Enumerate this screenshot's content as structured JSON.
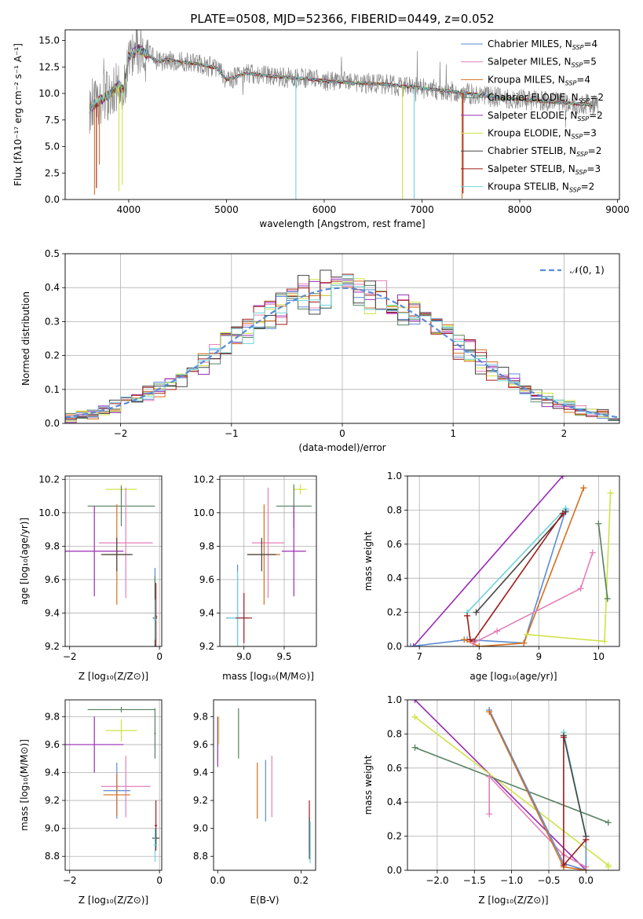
{
  "colors": {
    "chabrier_miles": "#5b8bd6",
    "salpeter_miles": "#e37fb8",
    "kroupa_miles": "#d66f1c",
    "chabrier_elodie": "#558060",
    "salpeter_elodie": "#9a2bb5",
    "kroupa_elodie": "#cfe246",
    "chabrier_stelib": "#444444",
    "salpeter_stelib": "#a11a1a",
    "kroupa_stelib": "#6fd4dc",
    "gray": "#888888",
    "normal": "#5b8bd6"
  },
  "chart_data": [
    {
      "id": "spectrum",
      "type": "line",
      "title": "PLATE=0508, MJD=52366, FIBERID=0449, z=0.052",
      "xlabel": "wavelength [Angstrom, rest frame]",
      "ylabel": "Flux [fλ10⁻¹⁷ erg cm⁻² s⁻¹ A⁻¹]",
      "xlim": [
        3350,
        9020
      ],
      "ylim": [
        0,
        16
      ],
      "xticks": [
        "4000",
        "5000",
        "6000",
        "7000",
        "8000",
        "9000"
      ],
      "xtick_values": [
        4000,
        5000,
        6000,
        7000,
        8000,
        9000
      ],
      "yticks": [
        "0.0",
        "2.5",
        "5.0",
        "7.5",
        "10.0",
        "12.5",
        "15.0"
      ],
      "ytick_values": [
        0,
        2.5,
        5,
        7.5,
        10,
        12.5,
        15
      ],
      "legend_position": "top-right",
      "legend": [
        {
          "label": "Chabrier MILES, N",
          "sub": "SSP",
          "suffix": "=4",
          "color_key": "chabrier_miles"
        },
        {
          "label": "Salpeter MILES, N",
          "sub": "SSP",
          "suffix": "=5",
          "color_key": "salpeter_miles"
        },
        {
          "label": "Kroupa MILES, N",
          "sub": "SSP",
          "suffix": "=4",
          "color_key": "kroupa_miles"
        },
        {
          "label": "Chabrier ELODIE, N",
          "sub": "SSP",
          "suffix": "=2",
          "color_key": "chabrier_elodie"
        },
        {
          "label": "Salpeter ELODIE, N",
          "sub": "SSP",
          "suffix": "=2",
          "color_key": "salpeter_elodie"
        },
        {
          "label": "Kroupa ELODIE, N",
          "sub": "SSP",
          "suffix": "=3",
          "color_key": "kroupa_elodie"
        },
        {
          "label": "Chabrier STELIB, N",
          "sub": "SSP",
          "suffix": "=2",
          "color_key": "chabrier_stelib"
        },
        {
          "label": "Salpeter STELIB, N",
          "sub": "SSP",
          "suffix": "=3",
          "color_key": "salpeter_stelib"
        },
        {
          "label": "Kroupa STELIB, N",
          "sub": "SSP",
          "suffix": "=2",
          "color_key": "kroupa_stelib"
        }
      ],
      "continuum": {
        "x": [
          3600,
          3700,
          3800,
          3900,
          3950,
          4000,
          4100,
          4200,
          4300,
          4400,
          4500,
          4700,
          4900,
          5000,
          5200,
          5500,
          5800,
          6000,
          6300,
          6600,
          7000,
          7400,
          7800,
          8200,
          8600,
          8800
        ],
        "y": [
          8.6,
          9.3,
          9.9,
          10.8,
          10.2,
          13.5,
          14.2,
          13.6,
          13.0,
          13.2,
          13.0,
          12.8,
          12.4,
          11.3,
          11.9,
          11.6,
          11.4,
          11.2,
          11.0,
          10.9,
          10.5,
          10.1,
          9.6,
          9.3,
          9.0,
          8.9
        ]
      },
      "spikes": [
        {
          "x": 3650,
          "depth": 8.5,
          "color_key": "kroupa_miles"
        },
        {
          "x": 3670,
          "depth": 8.0,
          "color_key": "salpeter_stelib"
        },
        {
          "x": 3700,
          "depth": 6.0,
          "color_key": "kroupa_miles"
        },
        {
          "x": 3900,
          "depth": 10.0,
          "color_key": "kroupa_elodie"
        },
        {
          "x": 3935,
          "depth": 9.0,
          "color_key": "kroupa_elodie"
        },
        {
          "x": 5710,
          "depth": 11.5,
          "color_key": "kroupa_stelib"
        },
        {
          "x": 6800,
          "depth": 10.8,
          "color_key": "kroupa_elodie"
        },
        {
          "x": 6920,
          "depth": 10.5,
          "color_key": "kroupa_stelib"
        },
        {
          "x": 7410,
          "depth": 10.0,
          "color_key": "kroupa_miles"
        },
        {
          "x": 7420,
          "depth": 9.5,
          "color_key": "salpeter_stelib"
        }
      ]
    },
    {
      "id": "residuals",
      "type": "line",
      "xlabel": "(data-model)/error",
      "ylabel": "Normed distribution",
      "xlim": [
        -2.5,
        2.5
      ],
      "ylim": [
        0,
        0.5
      ],
      "xticks": [
        "−2",
        "−1",
        "0",
        "1",
        "2"
      ],
      "xtick_values": [
        -2,
        -1,
        0,
        1,
        2
      ],
      "yticks": [
        "0.0",
        "0.1",
        "0.2",
        "0.3",
        "0.4",
        "0.5"
      ],
      "ytick_values": [
        0,
        0.1,
        0.2,
        0.3,
        0.4,
        0.5
      ],
      "grid": true,
      "legend_position": "top-right",
      "normal_legend": "𝒩(0, 1)",
      "bin_start": -2.5,
      "bin_width": 0.1
    },
    {
      "id": "z-age",
      "type": "scatter",
      "xlabel": "Z [log₁₀(Z/Z⊙)]",
      "ylabel": "age  [log₁₀(age/yr)]",
      "xlim": [
        -2.1,
        0.05
      ],
      "ylim": [
        9.2,
        10.22
      ],
      "xticks": [
        "−2",
        "0"
      ],
      "xtick_values": [
        -2,
        0
      ],
      "yticks": [
        "9.2",
        "9.4",
        "9.6",
        "9.8",
        "10.0",
        "10.2"
      ],
      "ytick_values": [
        9.2,
        9.4,
        9.6,
        9.8,
        10.0,
        10.2
      ],
      "grid": true,
      "points": [
        {
          "x": -0.85,
          "y": 10.14,
          "xerr": 0.35,
          "yerr": 0.03,
          "color_key": "kroupa_elodie"
        },
        {
          "x": -0.85,
          "y": 10.04,
          "xerr": 0.75,
          "yerr": 0.12,
          "color_key": "chabrier_elodie"
        },
        {
          "x": -1.45,
          "y": 9.77,
          "xerr": 0.65,
          "yerr": 0.27,
          "color_key": "salpeter_elodie"
        },
        {
          "x": -0.75,
          "y": 9.82,
          "xerr": 0.6,
          "yerr": 0.33,
          "color_key": "salpeter_miles"
        },
        {
          "x": -0.95,
          "y": 9.75,
          "xerr": 0.3,
          "yerr": 0.3,
          "color_key": "kroupa_miles"
        },
        {
          "x": -0.95,
          "y": 9.75,
          "xerr": 0.35,
          "yerr": 0.1,
          "color_key": "chabrier_stelib"
        },
        {
          "x": -0.1,
          "y": 9.37,
          "xerr": 0.05,
          "yerr": 0.3,
          "color_key": "chabrier_miles"
        },
        {
          "x": -0.1,
          "y": 9.37,
          "xerr": 0.05,
          "yerr": 0.25,
          "color_key": "chabrier_elodie"
        },
        {
          "x": -0.08,
          "y": 9.38,
          "xerr": 0.03,
          "yerr": 0.2,
          "color_key": "salpeter_stelib"
        },
        {
          "x": -0.1,
          "y": 9.36,
          "xerr": 0.03,
          "yerr": 0.12,
          "color_key": "kroupa_stelib"
        }
      ]
    },
    {
      "id": "mass-age",
      "type": "scatter",
      "xlabel": "mass [log₁₀(M/M⊙)]",
      "ylabel": "",
      "xlim": [
        8.7,
        9.9
      ],
      "ylim": [
        9.2,
        10.22
      ],
      "xticks": [
        "9.0",
        "9.5"
      ],
      "xtick_values": [
        9.0,
        9.5
      ],
      "yticks": [
        "9.2",
        "9.4",
        "9.6",
        "9.8",
        "10.0",
        "10.2"
      ],
      "ytick_values": [
        9.2,
        9.4,
        9.6,
        9.8,
        10.0,
        10.2
      ],
      "grid": true,
      "points": [
        {
          "x": 9.7,
          "y": 10.14,
          "xerr": 0.08,
          "yerr": 0.03,
          "color_key": "kroupa_elodie"
        },
        {
          "x": 9.62,
          "y": 10.04,
          "xerr": 0.22,
          "yerr": 0.13,
          "color_key": "chabrier_elodie"
        },
        {
          "x": 9.62,
          "y": 9.77,
          "xerr": 0.15,
          "yerr": 0.27,
          "color_key": "salpeter_elodie"
        },
        {
          "x": 9.3,
          "y": 9.82,
          "xerr": 0.2,
          "yerr": 0.33,
          "color_key": "salpeter_miles"
        },
        {
          "x": 9.25,
          "y": 9.75,
          "xerr": 0.2,
          "yerr": 0.3,
          "color_key": "kroupa_miles"
        },
        {
          "x": 9.22,
          "y": 9.75,
          "xerr": 0.18,
          "yerr": 0.1,
          "color_key": "chabrier_stelib"
        },
        {
          "x": 8.92,
          "y": 9.37,
          "xerr": 0.14,
          "yerr": 0.32,
          "color_key": "chabrier_miles"
        },
        {
          "x": 8.92,
          "y": 9.37,
          "xerr": 0.12,
          "yerr": 0.28,
          "color_key": "kroupa_stelib"
        },
        {
          "x": 9.0,
          "y": 9.37,
          "xerr": 0.1,
          "yerr": 0.15,
          "color_key": "salpeter_stelib"
        }
      ]
    },
    {
      "id": "age-weight",
      "type": "line",
      "xlabel": "age  [log₁₀(age/yr)]",
      "ylabel": "mass weight",
      "xlim": [
        6.8,
        10.35
      ],
      "ylim": [
        0,
        1
      ],
      "xticks": [
        "7",
        "8",
        "9",
        "10"
      ],
      "xtick_values": [
        7,
        8,
        9,
        10
      ],
      "yticks": [
        "0.0",
        "0.2",
        "0.4",
        "0.6",
        "0.8",
        "1.0"
      ],
      "ytick_values": [
        0,
        0.2,
        0.4,
        0.6,
        0.8,
        1.0
      ],
      "grid": true,
      "series": [
        {
          "color_key": "salpeter_elodie",
          "x": [
            6.9,
            9.4
          ],
          "y": [
            0.0,
            1.0
          ]
        },
        {
          "color_key": "chabrier_miles",
          "x": [
            6.85,
            7.8,
            8.75,
            9.45
          ],
          "y": [
            0.0,
            0.04,
            0.02,
            0.8
          ]
        },
        {
          "color_key": "kroupa_stelib",
          "x": [
            7.8,
            9.45
          ],
          "y": [
            0.2,
            0.81
          ]
        },
        {
          "color_key": "chabrier_stelib",
          "x": [
            7.95,
            9.45
          ],
          "y": [
            0.2,
            0.79
          ]
        },
        {
          "color_key": "salpeter_stelib",
          "x": [
            7.8,
            7.85,
            7.9,
            9.4
          ],
          "y": [
            0.18,
            0.04,
            0.03,
            0.78
          ]
        },
        {
          "color_key": "kroupa_miles",
          "x": [
            7.75,
            8.0,
            8.75,
            9.75
          ],
          "y": [
            0.04,
            0.0,
            0.02,
            0.93
          ]
        },
        {
          "color_key": "salpeter_miles",
          "x": [
            7.9,
            8.3,
            9.7,
            9.9
          ],
          "y": [
            0.02,
            0.09,
            0.34,
            0.55
          ]
        },
        {
          "color_key": "kroupa_elodie",
          "x": [
            8.8,
            10.1,
            10.2
          ],
          "y": [
            0.07,
            0.03,
            0.9
          ]
        },
        {
          "color_key": "chabrier_elodie",
          "x": [
            10.0,
            10.15
          ],
          "y": [
            0.72,
            0.28
          ]
        }
      ]
    },
    {
      "id": "z-mass",
      "type": "scatter",
      "xlabel": "Z [log₁₀(Z/Z⊙)]",
      "ylabel": "mass [log₁₀(M/M⊙)]",
      "xlim": [
        -2.1,
        0.05
      ],
      "ylim": [
        8.7,
        9.92
      ],
      "xticks": [
        "−2",
        "0"
      ],
      "xtick_values": [
        -2,
        0
      ],
      "yticks": [
        "8.8",
        "9.0",
        "9.2",
        "9.4",
        "9.6",
        "9.8"
      ],
      "ytick_values": [
        8.8,
        9.0,
        9.2,
        9.4,
        9.6,
        9.8
      ],
      "grid": true,
      "points": [
        {
          "x": -0.85,
          "y": 9.85,
          "xerr": 0.75,
          "yerr": 0.02,
          "color_key": "chabrier_elodie"
        },
        {
          "x": -0.1,
          "y": 9.68,
          "xerr": 0.02,
          "yerr": 0.18,
          "color_key": "chabrier_elodie"
        },
        {
          "x": -0.85,
          "y": 9.7,
          "xerr": 0.35,
          "yerr": 0.08,
          "color_key": "kroupa_elodie"
        },
        {
          "x": -1.45,
          "y": 9.6,
          "xerr": 0.65,
          "yerr": 0.2,
          "color_key": "salpeter_elodie"
        },
        {
          "x": -0.75,
          "y": 9.3,
          "xerr": 0.55,
          "yerr": 0.22,
          "color_key": "salpeter_miles"
        },
        {
          "x": -0.95,
          "y": 9.27,
          "xerr": 0.3,
          "yerr": 0.2,
          "color_key": "chabrier_miles"
        },
        {
          "x": -0.95,
          "y": 9.24,
          "xerr": 0.3,
          "yerr": 0.15,
          "color_key": "kroupa_miles"
        },
        {
          "x": -0.08,
          "y": 9.02,
          "xerr": 0.03,
          "yerr": 0.18,
          "color_key": "salpeter_stelib"
        },
        {
          "x": -0.08,
          "y": 8.93,
          "xerr": 0.08,
          "yerr": 0.06,
          "color_key": "chabrier_stelib"
        },
        {
          "x": -0.1,
          "y": 8.88,
          "xerr": 0.03,
          "yerr": 0.12,
          "color_key": "kroupa_stelib"
        }
      ]
    },
    {
      "id": "ebv-mass",
      "type": "scatter",
      "xlabel": "E(B-V)",
      "ylabel": "",
      "xlim": [
        -0.01,
        0.235
      ],
      "ylim": [
        8.7,
        9.92
      ],
      "xticks": [
        "0.0",
        "0.2"
      ],
      "xtick_values": [
        0.0,
        0.2
      ],
      "yticks": [
        "8.8",
        "9.0",
        "9.2",
        "9.4",
        "9.6",
        "9.8"
      ],
      "ytick_values": [
        8.8,
        9.0,
        9.2,
        9.4,
        9.6,
        9.8
      ],
      "grid": false,
      "points": [
        {
          "x": 0.0,
          "y": 9.62,
          "xerr": 0,
          "yerr": 0.18,
          "color_key": "salpeter_elodie"
        },
        {
          "x": 0.003,
          "y": 9.7,
          "xerr": 0,
          "yerr": 0.1,
          "color_key": "kroupa_elodie"
        },
        {
          "x": 0.05,
          "y": 9.68,
          "xerr": 0,
          "yerr": 0.18,
          "color_key": "chabrier_elodie"
        },
        {
          "x": 0.095,
          "y": 9.27,
          "xerr": 0,
          "yerr": 0.2,
          "color_key": "kroupa_miles"
        },
        {
          "x": 0.115,
          "y": 9.27,
          "xerr": 0,
          "yerr": 0.22,
          "color_key": "chabrier_miles"
        },
        {
          "x": 0.13,
          "y": 9.3,
          "xerr": 0,
          "yerr": 0.22,
          "color_key": "salpeter_miles"
        },
        {
          "x": 0.22,
          "y": 9.02,
          "xerr": 0,
          "yerr": 0.18,
          "color_key": "salpeter_stelib"
        },
        {
          "x": 0.22,
          "y": 8.93,
          "xerr": 0,
          "yerr": 0.15,
          "color_key": "chabrier_stelib"
        },
        {
          "x": 0.222,
          "y": 8.9,
          "xerr": 0,
          "yerr": 0.15,
          "color_key": "kroupa_stelib"
        }
      ]
    },
    {
      "id": "z-weight",
      "type": "line",
      "xlabel": "Z [log₁₀(Z/Z⊙)]",
      "ylabel": "mass weight",
      "xlim": [
        -2.4,
        0.45
      ],
      "ylim": [
        0,
        1
      ],
      "xticks": [
        "−2.0",
        "−1.5",
        "−1.0",
        "−0.5",
        "0.0"
      ],
      "xtick_values": [
        -2.0,
        -1.5,
        -1.0,
        -0.5,
        0.0
      ],
      "yticks": [
        "0.0",
        "0.2",
        "0.4",
        "0.6",
        "0.8",
        "1.0"
      ],
      "ytick_values": [
        0,
        0.2,
        0.4,
        0.6,
        0.8,
        1.0
      ],
      "grid": true,
      "series": [
        {
          "color_key": "salpeter_elodie",
          "x": [
            -2.3,
            0.0
          ],
          "y": [
            1.0,
            0.0
          ]
        },
        {
          "color_key": "kroupa_elodie",
          "x": [
            -2.3,
            0.3,
            0.3
          ],
          "y": [
            0.9,
            0.03,
            0.02
          ]
        },
        {
          "color_key": "chabrier_elodie",
          "x": [
            -2.3,
            0.3
          ],
          "y": [
            0.72,
            0.28
          ]
        },
        {
          "color_key": "salpeter_miles",
          "x": [
            -1.3,
            -1.3
          ],
          "y": [
            0.33,
            0.55
          ]
        },
        {
          "color_key": "salpeter_miles",
          "x": [
            -1.3,
            -0.3,
            0.0
          ],
          "y": [
            0.55,
            0.09,
            0.02
          ]
        },
        {
          "color_key": "chabrier_miles",
          "x": [
            -1.3,
            -0.3,
            0.0,
            0.0
          ],
          "y": [
            0.94,
            0.04,
            0.0,
            0.2
          ]
        },
        {
          "color_key": "kroupa_miles",
          "x": [
            -1.3,
            -0.3,
            0.0
          ],
          "y": [
            0.93,
            0.02,
            0.0
          ]
        },
        {
          "color_key": "kroupa_stelib",
          "x": [
            -0.3,
            0.0
          ],
          "y": [
            0.81,
            0.2
          ]
        },
        {
          "color_key": "chabrier_stelib",
          "x": [
            -0.3,
            0.0
          ],
          "y": [
            0.79,
            0.2
          ]
        },
        {
          "color_key": "salpeter_stelib",
          "x": [
            -0.3,
            -0.3,
            0.0
          ],
          "y": [
            0.78,
            0.03,
            0.18
          ]
        }
      ]
    }
  ]
}
